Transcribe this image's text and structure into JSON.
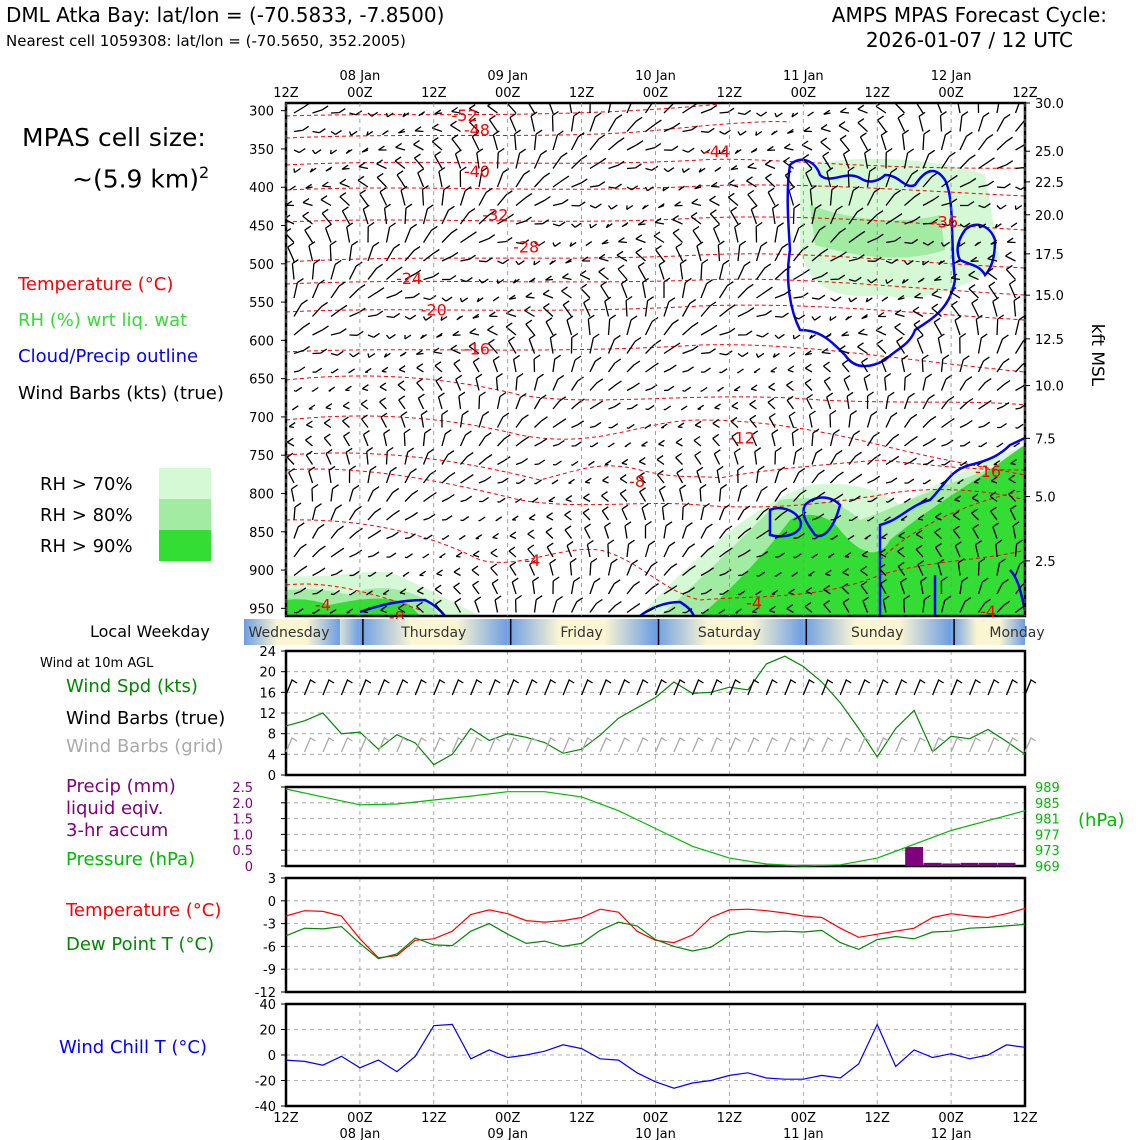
{
  "header": {
    "station_line": "DML Atka Bay: lat/lon = (-70.5833, -7.8500)",
    "cell_line": "Nearest cell 1059308: lat/lon = (-70.5650, 352.2005)",
    "forecast_title": "AMPS MPAS Forecast Cycle:",
    "forecast_cycle": "2026-01-07 / 12 UTC"
  },
  "left_legend": {
    "cell_size_label": "MPAS cell size:",
    "cell_size_value": "~(5.9 km)",
    "cell_size_exponent": "2",
    "temperature": "Temperature (°C)",
    "rh": "RH (%) wrt liq. wat",
    "cloud": "Cloud/Precip outline",
    "wind": "Wind Barbs (kts) (true)",
    "rh70": "RH > 70%",
    "rh80": "RH > 80%",
    "rh90": "RH > 90%"
  },
  "colors": {
    "temperature": "#ff0000",
    "rh_label": "#33dd33",
    "cloud": "#0000ff",
    "rh70": "#d4f9d4",
    "rh80": "#a2eba2",
    "rh90": "#33dd33",
    "wind_speed": "#008800",
    "grid_barb": "#aaaaaa",
    "precip": "#800080",
    "pressure": "#00bb00",
    "dewpoint": "#008800",
    "windchill": "#0000ff"
  },
  "time_axis": {
    "hours": [
      0,
      12,
      24,
      36,
      48,
      60,
      72,
      84,
      96,
      108,
      120
    ],
    "labels": [
      "12Z",
      "00Z",
      "12Z",
      "00Z",
      "12Z",
      "00Z",
      "12Z",
      "00Z",
      "12Z",
      "00Z",
      "12Z"
    ],
    "dates": [
      "",
      "08 Jan",
      "",
      "09 Jan",
      "",
      "10 Jan",
      "",
      "11 Jan",
      "",
      "12 Jan",
      ""
    ],
    "weekday_row_label": "Local Weekday",
    "weekdays": [
      "Wednesday",
      "Thursday",
      "Friday",
      "Saturday",
      "Sunday",
      "Monday"
    ]
  },
  "chart_data": [
    {
      "type": "heatmap",
      "subtype": "time-height cross-section",
      "xlim": [
        0,
        120
      ],
      "ylim_hpa": [
        960,
        290
      ],
      "pressure_ticks": [
        300,
        350,
        400,
        450,
        500,
        550,
        600,
        650,
        700,
        750,
        800,
        850,
        900,
        950
      ],
      "height_ticks_kft": [
        "30.0",
        "25.0",
        "22.5",
        "20.0",
        "17.5",
        "15.0",
        "12.5",
        "10.0",
        "7.5",
        "5.0",
        "2.5"
      ],
      "height_ticks_at_hpa": [
        290,
        353,
        393,
        436,
        487,
        541,
        598,
        659,
        728,
        804,
        888
      ],
      "right_axis_label": "kft MSL",
      "temperature_labels": [
        {
          "t": 29,
          "p": 307,
          "text": "-52"
        },
        {
          "t": 31,
          "p": 326,
          "text": "-48"
        },
        {
          "t": 70,
          "p": 354,
          "text": "-44"
        },
        {
          "t": 31,
          "p": 380,
          "text": "-40"
        },
        {
          "t": 34,
          "p": 437,
          "text": "-32"
        },
        {
          "t": 107,
          "p": 446,
          "text": "-36"
        },
        {
          "t": 39,
          "p": 479,
          "text": "-28"
        },
        {
          "t": 20,
          "p": 520,
          "text": "-24"
        },
        {
          "t": 24,
          "p": 561,
          "text": "-20"
        },
        {
          "t": 31,
          "p": 612,
          "text": "-16"
        },
        {
          "t": 74,
          "p": 728,
          "text": "-12"
        },
        {
          "t": 114,
          "p": 772,
          "text": "-16"
        },
        {
          "t": 57,
          "p": 785,
          "text": "-8"
        },
        {
          "t": 40,
          "p": 888,
          "text": "-4"
        },
        {
          "t": 76,
          "p": 944,
          "text": "-4"
        },
        {
          "t": 114,
          "p": 955,
          "text": "-4"
        },
        {
          "t": 6,
          "p": 946,
          "text": "-4"
        },
        {
          "t": 18,
          "p": 962,
          "text": "-8"
        }
      ]
    },
    {
      "type": "line",
      "title": "Wind at 10m AGL",
      "legend": [
        "Wind Spd (kts)",
        "Wind Barbs (true)",
        "Wind Barbs (grid)"
      ],
      "ylim": [
        0,
        24
      ],
      "yticks": [
        0,
        4,
        8,
        12,
        16,
        20,
        24
      ],
      "x": [
        0,
        3,
        6,
        9,
        12,
        15,
        18,
        21,
        24,
        27,
        30,
        33,
        36,
        39,
        42,
        45,
        48,
        51,
        54,
        57,
        60,
        63,
        66,
        69,
        72,
        75,
        78,
        81,
        84,
        87,
        90,
        93,
        96,
        99,
        102,
        105,
        108,
        111,
        114,
        117,
        120
      ],
      "series": [
        {
          "name": "Wind Spd (kts)",
          "values": [
            9.5,
            10.5,
            12,
            8,
            8.3,
            5,
            7.8,
            6.2,
            2,
            4,
            9,
            6.7,
            8,
            7.3,
            6.3,
            4.2,
            5,
            7.7,
            11,
            13,
            15,
            18,
            15.8,
            16,
            17,
            16.5,
            21.5,
            23,
            21,
            18,
            14,
            9,
            3.5,
            9,
            12.5,
            4.5,
            7.5,
            7,
            8.8,
            6.5,
            4
          ]
        }
      ]
    },
    {
      "type": "bar",
      "series_name": "Precip (mm)",
      "legend": [
        "Precip (mm)",
        "liquid eqiv.",
        "3-hr accum",
        "Pressure (hPa)"
      ],
      "ylim": [
        0,
        2.5
      ],
      "yticks": [
        "0",
        "0.5",
        "1.0",
        "1.5",
        "2.0",
        "2.5"
      ],
      "x": [
        102,
        105,
        108,
        111,
        114,
        117
      ],
      "values": [
        0.6,
        0.1,
        0.08,
        0.1,
        0.1,
        0.1
      ]
    },
    {
      "type": "line",
      "series_name": "Pressure (hPa)",
      "right_axis_label": "(hPa)",
      "ylim": [
        969,
        989
      ],
      "yticks": [
        "969",
        "973",
        "977",
        "981",
        "985",
        "989"
      ],
      "x": [
        0,
        6,
        12,
        18,
        24,
        30,
        36,
        42,
        48,
        54,
        60,
        66,
        72,
        78,
        84,
        90,
        96,
        102,
        108,
        114,
        120
      ],
      "values": [
        988.5,
        986.5,
        984.5,
        984.7,
        985.7,
        986.7,
        987.8,
        987.8,
        986.5,
        983,
        978.5,
        974,
        971,
        969.5,
        969,
        969.3,
        971,
        974.5,
        978,
        980.5,
        983
      ]
    },
    {
      "type": "line",
      "legend": [
        "Temperature (°C)",
        "Dew Point T (°C)"
      ],
      "ylim": [
        -12,
        3
      ],
      "yticks": [
        -12,
        -9,
        -6,
        -3,
        0,
        3
      ],
      "x": [
        0,
        3,
        6,
        9,
        12,
        15,
        18,
        21,
        24,
        27,
        30,
        33,
        36,
        39,
        42,
        45,
        48,
        51,
        54,
        57,
        60,
        63,
        66,
        69,
        72,
        75,
        78,
        81,
        84,
        87,
        90,
        93,
        96,
        99,
        102,
        105,
        108,
        111,
        114,
        117,
        120
      ],
      "series": [
        {
          "name": "Temperature (°C)",
          "values": [
            -2,
            -1.3,
            -1.4,
            -2,
            -5,
            -7.5,
            -7.2,
            -5.2,
            -5,
            -4,
            -1.8,
            -1.2,
            -1.7,
            -2.6,
            -2.8,
            -2.6,
            -2.2,
            -1.1,
            -1.5,
            -4,
            -5.2,
            -5.5,
            -4.5,
            -2.2,
            -1.2,
            -1.1,
            -1.3,
            -1.6,
            -2,
            -2.2,
            -3.6,
            -4.8,
            -4.4,
            -4,
            -3.6,
            -2.2,
            -1.7,
            -2,
            -2.2,
            -1.7,
            -1
          ]
        },
        {
          "name": "Dew Point T (°C)",
          "values": [
            -4.6,
            -3.6,
            -3.7,
            -3.4,
            -5.6,
            -7.6,
            -7,
            -4.9,
            -5.8,
            -5.9,
            -4,
            -3,
            -4.4,
            -5.6,
            -5.3,
            -6,
            -5.6,
            -3.9,
            -2.8,
            -3.3,
            -5.1,
            -6,
            -6.6,
            -6.1,
            -4.5,
            -4,
            -4.1,
            -4,
            -4.1,
            -3.9,
            -5.5,
            -6.4,
            -5.1,
            -4.7,
            -5,
            -4.1,
            -4,
            -3.6,
            -3.5,
            -3.3,
            -3.1
          ]
        }
      ]
    },
    {
      "type": "line",
      "legend": [
        "Wind Chill T (°C)"
      ],
      "ylim": [
        -40,
        40
      ],
      "yticks": [
        -40,
        -20,
        0,
        20,
        40
      ],
      "x": [
        0,
        3,
        6,
        9,
        12,
        15,
        18,
        21,
        24,
        27,
        30,
        33,
        36,
        39,
        42,
        45,
        48,
        51,
        54,
        57,
        60,
        63,
        66,
        69,
        72,
        75,
        78,
        81,
        84,
        87,
        90,
        93,
        96,
        99,
        102,
        105,
        108,
        111,
        114,
        117,
        120
      ],
      "series": [
        {
          "name": "Wind Chill T (°C)",
          "values": [
            -4,
            -5,
            -8,
            -1,
            -10,
            -4,
            -13,
            -1,
            23,
            24,
            -3,
            4,
            -2,
            0,
            3,
            8,
            5,
            -3,
            -4,
            -14,
            -21,
            -26,
            -22,
            -20,
            -16,
            -14,
            -18,
            -19,
            -19,
            -16,
            -18,
            -7,
            24,
            -9,
            4,
            -2,
            1,
            -3,
            0,
            8,
            6
          ]
        }
      ]
    }
  ]
}
